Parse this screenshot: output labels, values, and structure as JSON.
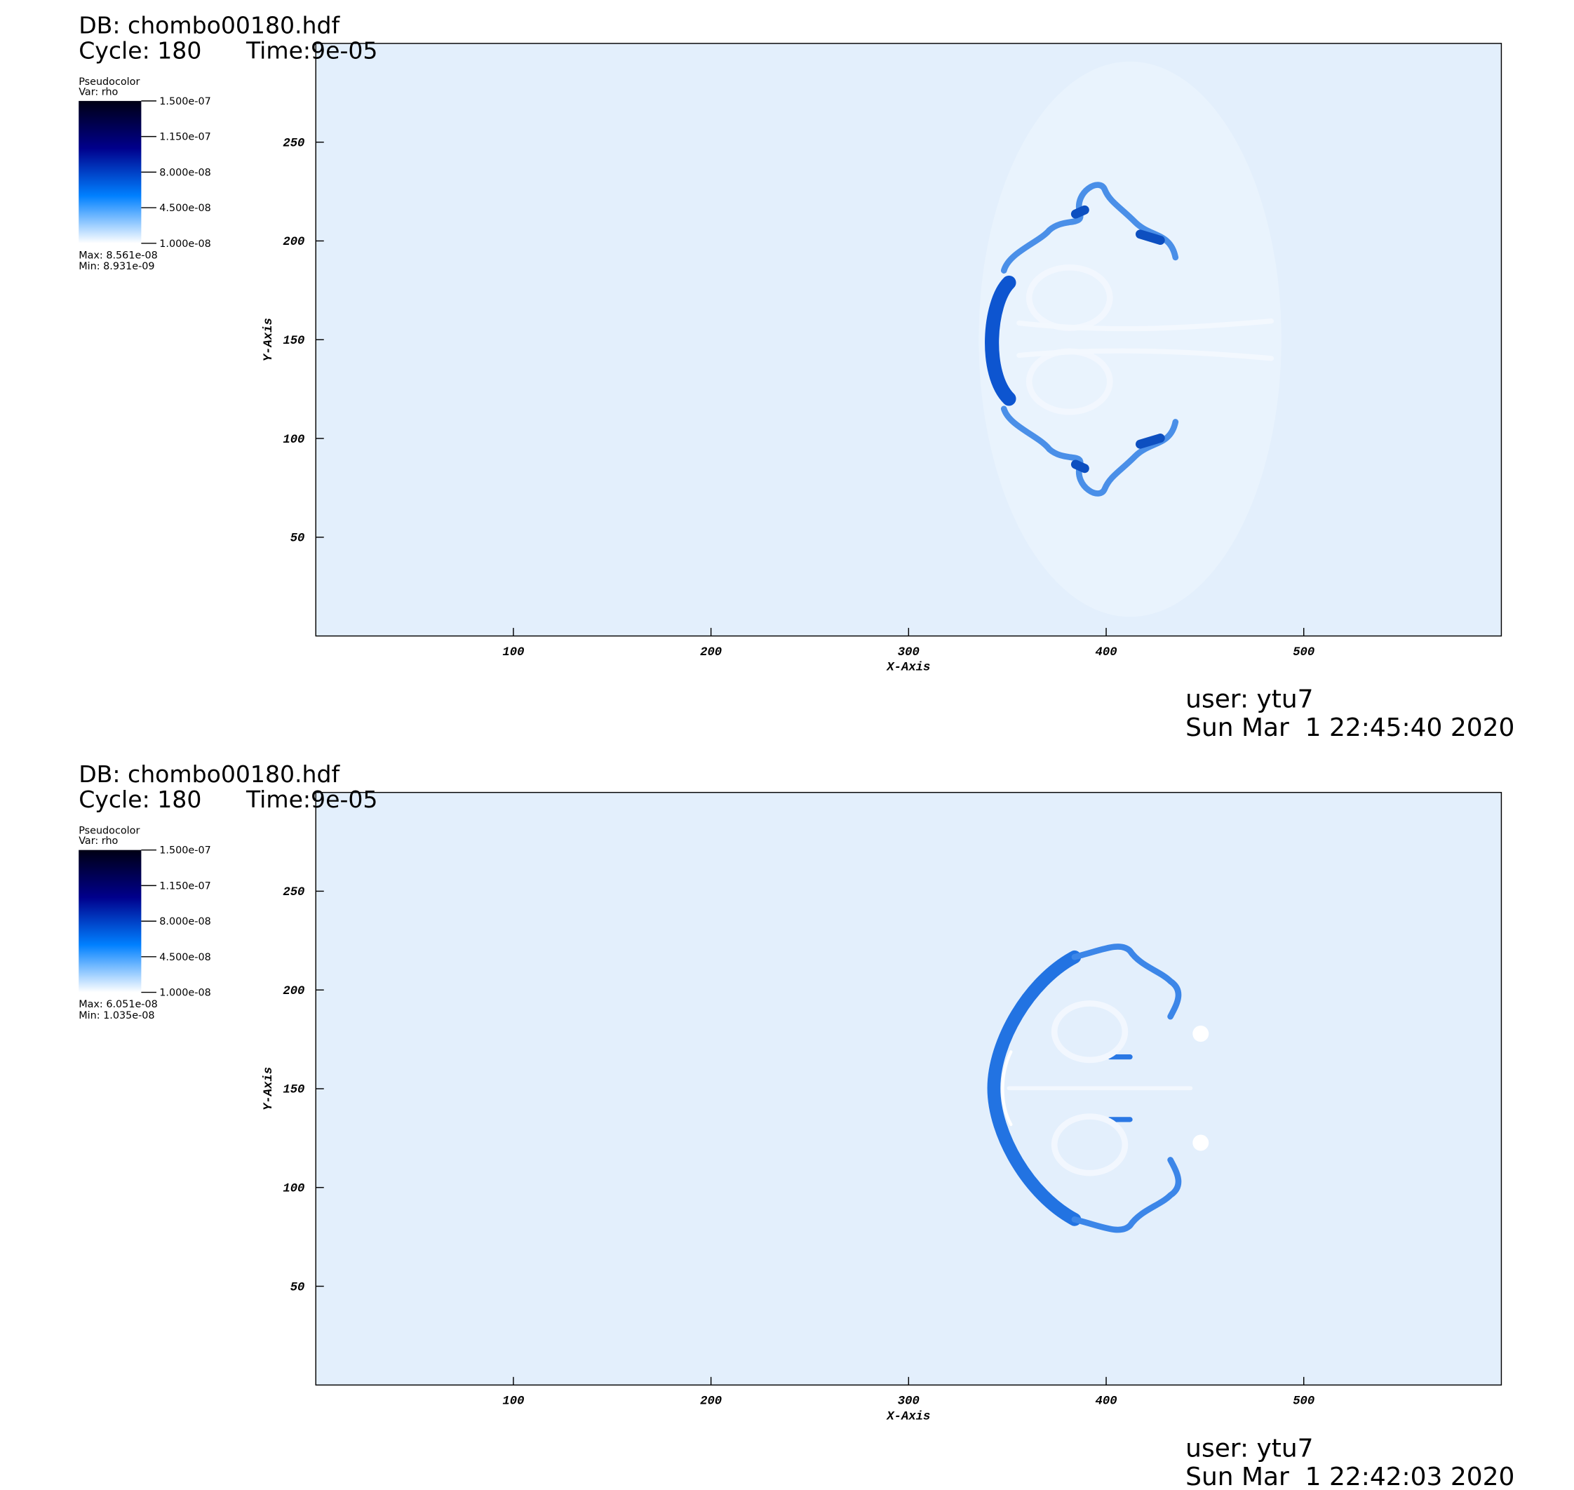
{
  "chart_data": [
    {
      "type": "pseudocolor",
      "title": "DB: chombo00180.hdf",
      "cycle": "Cycle: 180",
      "time": "Time:9e-05",
      "plot_name": "Pseudocolor",
      "variable": "Var: rho",
      "colormap": [
        "#ffffff",
        "#0080ff",
        "#00008c",
        "#000014"
      ],
      "colorbar_lim": [
        1e-08,
        1.5e-07
      ],
      "colorbar_ticks": [
        {
          "value": 1.5e-07,
          "label": "1.500e-07"
        },
        {
          "value": 1.15e-07,
          "label": "1.150e-07"
        },
        {
          "value": 8e-08,
          "label": "8.000e-08"
        },
        {
          "value": 4.5e-08,
          "label": "4.500e-08"
        },
        {
          "value": 1e-08,
          "label": "1.000e-08"
        }
      ],
      "max_label": "Max:  8.561e-08",
      "min_label": "Min:  8.931e-09",
      "xlabel": "X-Axis",
      "ylabel": "Y-Axis",
      "xlim": [
        0,
        600
      ],
      "ylim": [
        0,
        300
      ],
      "xticks": [
        100,
        200,
        300,
        400,
        500
      ],
      "yticks": [
        50,
        100,
        150,
        200,
        250
      ],
      "user": "user: ytu7",
      "date": "Sun Mar  1 22:45:40 2020"
    },
    {
      "type": "pseudocolor",
      "title": "DB: chombo00180.hdf",
      "cycle": "Cycle: 180",
      "time": "Time:9e-05",
      "plot_name": "Pseudocolor",
      "variable": "Var: rho",
      "colormap": [
        "#ffffff",
        "#0080ff",
        "#00008c",
        "#000014"
      ],
      "colorbar_lim": [
        1e-08,
        1.5e-07
      ],
      "colorbar_ticks": [
        {
          "value": 1.5e-07,
          "label": "1.500e-07"
        },
        {
          "value": 1.15e-07,
          "label": "1.150e-07"
        },
        {
          "value": 8e-08,
          "label": "8.000e-08"
        },
        {
          "value": 4.5e-08,
          "label": "4.500e-08"
        },
        {
          "value": 1e-08,
          "label": "1.000e-08"
        }
      ],
      "max_label": "Max:  6.051e-08",
      "min_label": "Min:  1.035e-08",
      "xlabel": "X-Axis",
      "ylabel": "Y-Axis",
      "xlim": [
        0,
        600
      ],
      "ylim": [
        0,
        300
      ],
      "xticks": [
        100,
        200,
        300,
        400,
        500
      ],
      "yticks": [
        50,
        100,
        150,
        200,
        250
      ],
      "user": "user: ytu7",
      "date": "Sun Mar  1 22:42:03 2020"
    }
  ]
}
